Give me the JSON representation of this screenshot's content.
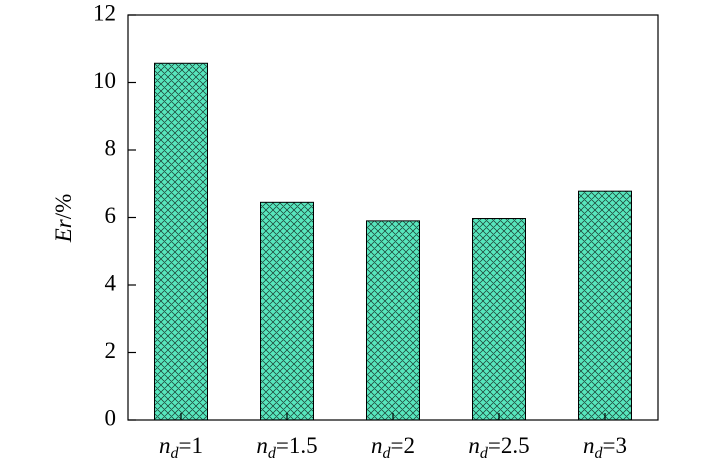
{
  "chart_data": {
    "type": "bar",
    "y_label": "Er/%",
    "categories": [
      "nd=1",
      "nd=1.5",
      "nd=2",
      "nd=2.5",
      "nd=3"
    ],
    "values": [
      10.57,
      6.45,
      5.9,
      5.97,
      6.78
    ],
    "color": "#57e6bd",
    "ylim": [
      0,
      12
    ],
    "yticks": [
      0,
      2,
      4,
      6,
      8,
      10,
      12
    ],
    "grid": false
  }
}
